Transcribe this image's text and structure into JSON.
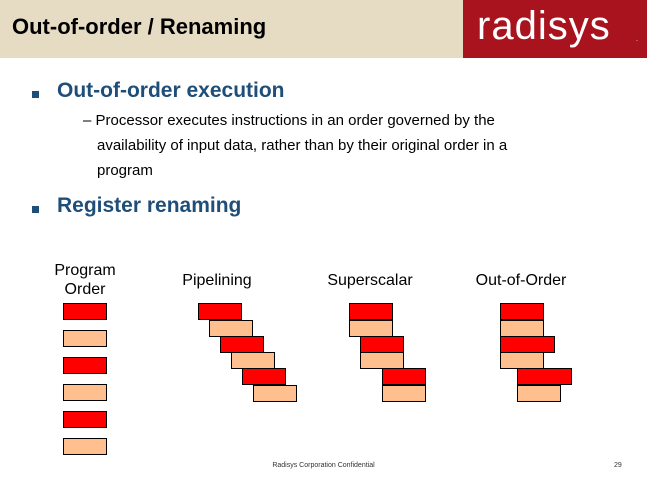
{
  "header": {
    "title": "Out-of-order / Renaming",
    "logo": "radisys",
    "logo_mark": ".",
    "bar_color": "#e6dcc3",
    "logo_color": "#a8131e"
  },
  "content": {
    "bullets": [
      {
        "heading": "Out-of-order execution",
        "sub": "Processor executes instructions in an order governed by the availability of input data, rather than by their original order in a program",
        "sub_lines": [
          "– Processor executes instructions in an order governed by the",
          "availability of input data, rather than by their original order in a",
          "program"
        ]
      },
      {
        "heading": "Register renaming"
      }
    ]
  },
  "diagram": {
    "labels": {
      "program_order_line1": "Program",
      "program_order_line2": "Order",
      "pipelining": "Pipelining",
      "superscalar": "Superscalar",
      "out_of_order": "Out-of-Order"
    },
    "colors": {
      "dark": "#ff0000",
      "light": "#ffbf8f"
    }
  },
  "footer": {
    "text": "Radisys Corporation Confidential",
    "page": "29"
  }
}
